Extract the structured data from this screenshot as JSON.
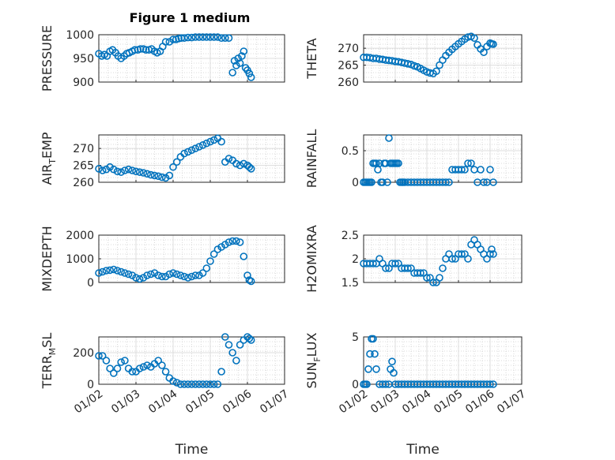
{
  "figure": {
    "title": "Figure 1 medium"
  },
  "chart_data": [
    {
      "type": "scatter",
      "ylabel": "PRESSURE",
      "title": "Figure 1 medium",
      "xlim": [
        0,
        5
      ],
      "ylim": [
        900,
        1000
      ],
      "yticks": [
        900,
        950,
        1000
      ],
      "xticklabels": [
        "01/02",
        "01/03",
        "01/04",
        "01/05",
        "01/06",
        "01/07"
      ],
      "grid": true,
      "x": [
        0.0,
        0.08,
        0.15,
        0.22,
        0.3,
        0.37,
        0.45,
        0.52,
        0.6,
        0.68,
        0.75,
        0.82,
        0.9,
        0.97,
        1.05,
        1.12,
        1.2,
        1.27,
        1.35,
        1.42,
        1.5,
        1.57,
        1.65,
        1.72,
        1.8,
        1.9,
        2.0,
        2.08,
        2.15,
        2.22,
        2.3,
        2.4,
        2.5,
        2.6,
        2.7,
        2.8,
        2.9,
        3.0,
        3.1,
        3.2,
        3.3,
        3.4,
        3.5,
        3.6,
        3.65,
        3.7,
        3.75,
        3.8,
        3.85,
        3.9,
        3.95,
        4.0,
        4.05,
        4.1
      ],
      "y": [
        960,
        955,
        958,
        955,
        965,
        968,
        962,
        955,
        950,
        955,
        960,
        962,
        965,
        968,
        968,
        970,
        970,
        968,
        968,
        970,
        965,
        962,
        965,
        975,
        985,
        985,
        990,
        990,
        992,
        993,
        993,
        994,
        994,
        995,
        995,
        995,
        995,
        995,
        995,
        995,
        993,
        993,
        993,
        920,
        945,
        935,
        950,
        940,
        955,
        965,
        930,
        925,
        918,
        910
      ]
    },
    {
      "type": "scatter",
      "ylabel": "THETA",
      "xlim": [
        0,
        5
      ],
      "ylim": [
        260,
        274
      ],
      "yticks": [
        260,
        265,
        270
      ],
      "xticklabels": [
        "01/02",
        "01/03",
        "01/04",
        "01/05",
        "01/06",
        "01/07"
      ],
      "grid": true,
      "x": [
        0.0,
        0.1,
        0.2,
        0.3,
        0.4,
        0.5,
        0.6,
        0.7,
        0.8,
        0.9,
        1.0,
        1.1,
        1.2,
        1.3,
        1.4,
        1.5,
        1.6,
        1.7,
        1.8,
        1.9,
        2.0,
        2.1,
        2.2,
        2.3,
        2.4,
        2.5,
        2.6,
        2.7,
        2.8,
        2.9,
        3.0,
        3.1,
        3.2,
        3.3,
        3.4,
        3.5,
        3.6,
        3.7,
        3.8,
        3.9,
        4.0,
        4.05,
        4.1
      ],
      "y": [
        267.3,
        267.3,
        267.2,
        267.0,
        267.0,
        266.8,
        266.7,
        266.5,
        266.4,
        266.3,
        266.1,
        266.0,
        265.8,
        265.6,
        265.4,
        265.2,
        264.8,
        264.5,
        264.0,
        263.5,
        263.0,
        262.7,
        262.5,
        263.2,
        265.0,
        266.5,
        267.8,
        268.8,
        269.7,
        270.5,
        271.3,
        272.0,
        272.7,
        273.3,
        273.5,
        273.0,
        271.0,
        269.8,
        268.8,
        270.5,
        271.5,
        271.3,
        271.2
      ]
    },
    {
      "type": "scatter",
      "ylabel": "AIR_TEMP",
      "xlim": [
        0,
        5
      ],
      "ylim": [
        260,
        274
      ],
      "yticks": [
        260,
        265,
        270
      ],
      "xticklabels": [
        "01/02",
        "01/03",
        "01/04",
        "01/05",
        "01/06",
        "01/07"
      ],
      "grid": true,
      "x": [
        0.0,
        0.1,
        0.2,
        0.3,
        0.4,
        0.5,
        0.6,
        0.7,
        0.8,
        0.9,
        1.0,
        1.1,
        1.2,
        1.3,
        1.4,
        1.5,
        1.6,
        1.7,
        1.8,
        1.9,
        2.0,
        2.1,
        2.2,
        2.3,
        2.4,
        2.5,
        2.6,
        2.7,
        2.8,
        2.9,
        3.0,
        3.1,
        3.2,
        3.3,
        3.4,
        3.5,
        3.6,
        3.7,
        3.8,
        3.9,
        4.0,
        4.05,
        4.1
      ],
      "y": [
        264.0,
        263.5,
        263.8,
        264.5,
        263.8,
        263.2,
        263.0,
        263.5,
        263.8,
        263.5,
        263.2,
        263.0,
        262.8,
        262.5,
        262.2,
        262.0,
        261.8,
        261.5,
        261.3,
        262.0,
        264.5,
        266.0,
        267.5,
        268.5,
        269.0,
        269.5,
        270.0,
        270.5,
        271.0,
        271.5,
        272.0,
        272.5,
        273.0,
        272.0,
        266.0,
        267.0,
        266.5,
        265.5,
        265.0,
        265.5,
        265.0,
        264.5,
        264.0
      ]
    },
    {
      "type": "scatter",
      "ylabel": "RAINFALL",
      "xlim": [
        0,
        5
      ],
      "ylim": [
        0,
        0.75
      ],
      "yticks": [
        0,
        0.5
      ],
      "xticklabels": [
        "01/02",
        "01/03",
        "01/04",
        "01/05",
        "01/06",
        "01/07"
      ],
      "grid": true,
      "x": [
        0.0,
        0.05,
        0.1,
        0.15,
        0.2,
        0.25,
        0.3,
        0.35,
        0.4,
        0.45,
        0.5,
        0.55,
        0.6,
        0.65,
        0.7,
        0.75,
        0.8,
        0.85,
        0.9,
        0.95,
        1.0,
        1.05,
        1.1,
        1.15,
        1.2,
        1.25,
        1.3,
        1.4,
        1.5,
        1.6,
        1.7,
        1.8,
        1.9,
        2.0,
        2.1,
        2.2,
        2.3,
        2.4,
        2.5,
        2.6,
        2.7,
        2.8,
        2.9,
        3.0,
        3.1,
        3.2,
        3.3,
        3.4,
        3.5,
        3.6,
        3.7,
        3.8,
        3.9,
        4.0,
        4.1
      ],
      "y": [
        0,
        0,
        0,
        0,
        0,
        0,
        0.3,
        0.3,
        0.3,
        0.2,
        0.3,
        0,
        0,
        0.3,
        0.3,
        0,
        0.7,
        0.3,
        0.3,
        0.3,
        0.3,
        0.3,
        0.3,
        0,
        0,
        0,
        0,
        0,
        0,
        0,
        0,
        0,
        0,
        0,
        0,
        0,
        0,
        0,
        0,
        0,
        0,
        0.2,
        0.2,
        0.2,
        0.2,
        0.2,
        0.3,
        0.3,
        0.2,
        0,
        0.2,
        0,
        0,
        0.2,
        0
      ]
    },
    {
      "type": "scatter",
      "ylabel": "MIXDEPTH",
      "xlim": [
        0,
        5
      ],
      "ylim": [
        0,
        2000
      ],
      "yticks": [
        0,
        1000,
        2000
      ],
      "xticklabels": [
        "01/02",
        "01/03",
        "01/04",
        "01/05",
        "01/06",
        "01/07"
      ],
      "grid": true,
      "x": [
        0.0,
        0.1,
        0.2,
        0.3,
        0.4,
        0.5,
        0.6,
        0.7,
        0.8,
        0.9,
        1.0,
        1.1,
        1.2,
        1.3,
        1.4,
        1.5,
        1.6,
        1.7,
        1.8,
        1.9,
        2.0,
        2.1,
        2.2,
        2.3,
        2.4,
        2.5,
        2.6,
        2.7,
        2.8,
        2.9,
        3.0,
        3.1,
        3.2,
        3.3,
        3.4,
        3.5,
        3.6,
        3.7,
        3.8,
        3.9,
        4.0,
        4.05,
        4.1
      ],
      "y": [
        400,
        450,
        500,
        520,
        550,
        500,
        450,
        400,
        350,
        300,
        200,
        150,
        200,
        300,
        350,
        400,
        300,
        250,
        250,
        350,
        400,
        350,
        300,
        250,
        200,
        250,
        300,
        300,
        400,
        600,
        900,
        1200,
        1400,
        1500,
        1600,
        1700,
        1750,
        1750,
        1700,
        1100,
        300,
        100,
        50
      ]
    },
    {
      "type": "scatter",
      "ylabel": "H2OMIXRA",
      "xlim": [
        0,
        5
      ],
      "ylim": [
        1.5,
        2.5
      ],
      "yticks": [
        1.5,
        2,
        2.5
      ],
      "xticklabels": [
        "01/02",
        "01/03",
        "01/04",
        "01/05",
        "01/06",
        "01/07"
      ],
      "grid": true,
      "x": [
        0.0,
        0.1,
        0.2,
        0.3,
        0.4,
        0.5,
        0.6,
        0.7,
        0.8,
        0.9,
        1.0,
        1.1,
        1.2,
        1.3,
        1.4,
        1.5,
        1.6,
        1.7,
        1.8,
        1.9,
        2.0,
        2.1,
        2.2,
        2.3,
        2.4,
        2.5,
        2.6,
        2.7,
        2.8,
        2.9,
        3.0,
        3.1,
        3.2,
        3.3,
        3.4,
        3.5,
        3.6,
        3.7,
        3.8,
        3.9,
        4.0,
        4.05,
        4.1
      ],
      "y": [
        1.9,
        1.9,
        1.9,
        1.9,
        1.9,
        2.0,
        1.9,
        1.8,
        1.8,
        1.9,
        1.9,
        1.9,
        1.8,
        1.8,
        1.8,
        1.8,
        1.7,
        1.7,
        1.7,
        1.7,
        1.6,
        1.6,
        1.5,
        1.5,
        1.6,
        1.8,
        2.0,
        2.1,
        2.0,
        2.0,
        2.1,
        2.1,
        2.1,
        2.0,
        2.3,
        2.4,
        2.3,
        2.2,
        2.1,
        2.0,
        2.1,
        2.2,
        2.1
      ]
    },
    {
      "type": "scatter",
      "ylabel": "TERR_MSL",
      "xlim": [
        0,
        5
      ],
      "ylim": [
        0,
        300
      ],
      "yticks": [
        0,
        200
      ],
      "xticklabels": [
        "01/02",
        "01/03",
        "01/04",
        "01/05",
        "01/06",
        "01/07"
      ],
      "grid": true,
      "x": [
        0.0,
        0.1,
        0.2,
        0.3,
        0.4,
        0.5,
        0.6,
        0.7,
        0.8,
        0.9,
        1.0,
        1.1,
        1.2,
        1.3,
        1.4,
        1.5,
        1.6,
        1.7,
        1.8,
        1.9,
        2.0,
        2.1,
        2.2,
        2.3,
        2.4,
        2.5,
        2.6,
        2.7,
        2.8,
        2.9,
        3.0,
        3.1,
        3.2,
        3.3,
        3.4,
        3.5,
        3.6,
        3.7,
        3.8,
        3.9,
        4.0,
        4.05,
        4.1
      ],
      "y": [
        180,
        180,
        150,
        100,
        70,
        100,
        140,
        150,
        100,
        80,
        80,
        100,
        110,
        120,
        110,
        130,
        150,
        120,
        80,
        40,
        20,
        10,
        0,
        0,
        0,
        0,
        0,
        0,
        0,
        0,
        0,
        0,
        0,
        80,
        300,
        250,
        200,
        150,
        250,
        280,
        300,
        290,
        280
      ]
    },
    {
      "type": "scatter",
      "ylabel": "SUN_FLUX",
      "xlim": [
        0,
        5
      ],
      "ylim": [
        0,
        5
      ],
      "yticks": [
        0,
        5
      ],
      "xticklabels": [
        "01/02",
        "01/03",
        "01/04",
        "01/05",
        "01/06",
        "01/07"
      ],
      "grid": true,
      "x": [
        0.0,
        0.05,
        0.1,
        0.15,
        0.2,
        0.25,
        0.3,
        0.35,
        0.4,
        0.5,
        0.6,
        0.7,
        0.8,
        0.85,
        0.9,
        0.95,
        1.0,
        1.1,
        1.2,
        1.3,
        1.4,
        1.5,
        1.6,
        1.7,
        1.8,
        1.9,
        2.0,
        2.1,
        2.2,
        2.3,
        2.4,
        2.5,
        2.6,
        2.7,
        2.8,
        2.9,
        3.0,
        3.1,
        3.2,
        3.3,
        3.4,
        3.5,
        3.6,
        3.7,
        3.8,
        3.9,
        4.0,
        4.1
      ],
      "y": [
        0,
        0,
        0,
        1.6,
        3.2,
        4.8,
        4.8,
        3.2,
        1.6,
        0,
        0,
        0,
        0,
        1.6,
        2.4,
        1.2,
        0,
        0,
        0,
        0,
        0,
        0,
        0,
        0,
        0,
        0,
        0,
        0,
        0,
        0,
        0,
        0,
        0,
        0,
        0,
        0,
        0,
        0,
        0,
        0,
        0,
        0,
        0,
        0,
        0,
        0,
        0,
        0
      ]
    }
  ],
  "xlabel": "Time"
}
